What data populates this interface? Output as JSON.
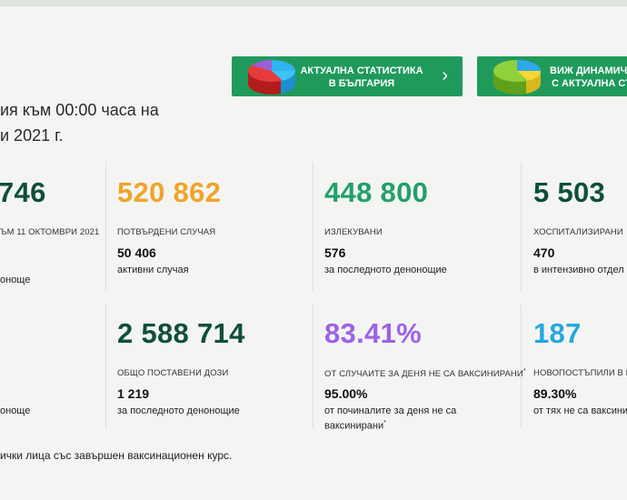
{
  "colors": {
    "button_bg": "#1f9a5b",
    "dark_green": "#0e4f38",
    "orange": "#f0a329",
    "mint": "#22a06b",
    "purple": "#9d61e8",
    "blue": "#23a8e0"
  },
  "buttons": [
    {
      "line1": "АКТУАЛНА СТАТИСТИКА",
      "line2": "В БЪЛГАРИЯ",
      "icon": "pie-chart-icon",
      "chevron": "›"
    },
    {
      "line1": "ВИЖ ДИНАМИЧ",
      "line2": "С АКТУАЛНА СТ",
      "icon": "pie-chart-icon"
    }
  ],
  "intro": {
    "line1": "ия към 00:00 часа на",
    "line2": "и 2021 г."
  },
  "row1": [
    {
      "big": "746",
      "caption": "ЪМ 11 ОКТОМВРИ 2021",
      "value": "",
      "sub": "оноще"
    },
    {
      "big": "520 862",
      "caption": "ПОТВЪРДЕНИ СЛУЧАЯ",
      "value": "50 406",
      "sub": "активни случая"
    },
    {
      "big": "448 800",
      "caption": "ИЗЛЕКУВАНИ",
      "value": "576",
      "sub": "за последното денонощие"
    },
    {
      "big": "5 503",
      "caption": "ХОСПИТАЛИЗИРАНИ",
      "value": "470",
      "sub": "в интензивно отдел"
    }
  ],
  "row2": [
    {
      "sub": "оноще"
    },
    {
      "big": "2 588 714",
      "caption": "ОБЩО ПОСТАВЕНИ ДОЗИ",
      "value": "1 219",
      "sub": "за последното денонощие"
    },
    {
      "big": "83.41%",
      "caption": "ОТ СЛУЧАИТЕ ЗА ДЕНЯ НЕ СА ВАКСИНИРАНИ",
      "caption_mark": "*",
      "value": "95.00%",
      "sub1": "от починалите за деня не са",
      "sub2": "ваксинирани",
      "sub_mark": "*"
    },
    {
      "big": "187",
      "caption": "НОВОПОСТЪПИЛИ В БО",
      "value": "89.30%",
      "sub": "от тях не са ваксини"
    }
  ],
  "footnote": "ички лица със завършен ваксинационен курс."
}
